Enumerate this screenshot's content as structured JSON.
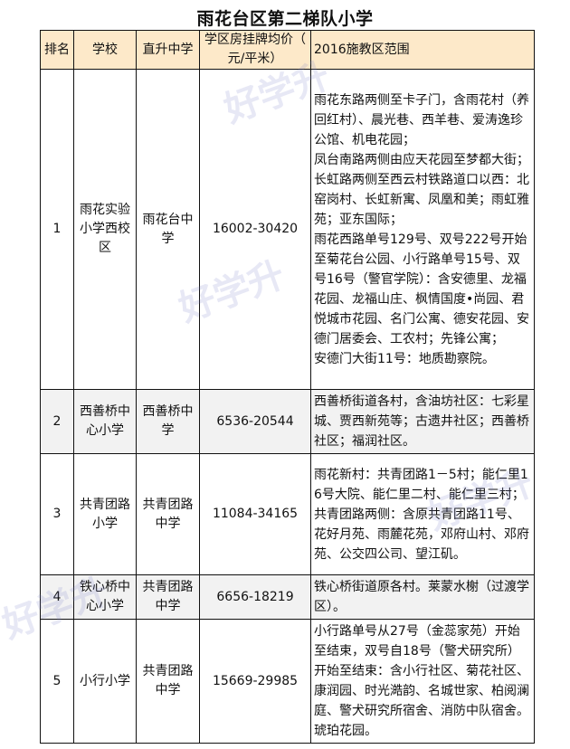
{
  "title": "雨花台区第二梯队小学",
  "headers": {
    "rank": "排名",
    "school": "学校",
    "middle": "直升中学",
    "price": "学区房挂牌均价（ 元/平米）",
    "range": "2016施教区范围"
  },
  "rows": [
    {
      "rank": "1",
      "school": "雨花实验小学西校区",
      "middle": "雨花台中学",
      "price": "16002-30420",
      "range": "雨花东路两侧至卡子门，含雨花村（养回红村）、晨光巷、西羊巷、爱涛逸珍公馆、机电花园；\n凤台南路两侧由应天花园至梦都大街；\n长虹路两侧至西云村铁路道口以西：北窑岗村、长虹新寓、凤凰和美；雨虹雅苑；亚东国际；\n雨花西路单号129号、双号222号开始至菊花台公园、小行路单号15号、双号16号（警官学院）：含安德里、龙福花园、龙福山庄、枫情国度•尚园、君悦城市花园、名门公寓、德安花园、安德门居委会、工农村；先锋公寓；\n安德门大街11号：地质勘察院。"
    },
    {
      "rank": "2",
      "school": "西善桥中心小学",
      "middle": "西善桥中学",
      "price": "6536-20544",
      "range": "西善桥街道各村，含油坊社区：七彩星城、贾西新苑等；古遗井社区；西善桥社区；福润社区。"
    },
    {
      "rank": "3",
      "school": "共青团路小学",
      "middle": "共青团路中学",
      "price": "11084-34165",
      "range": "雨花新村：共青团路1－5村；能仁里16号大院、能仁里二村、能仁里三村；共青团路两侧：含原共青团路11号、花好月苑、雨麓花苑，邓府山村、邓府苑、公交四公司、望江矶。"
    },
    {
      "rank": "4",
      "school": "铁心桥中心小学",
      "middle": "共青团路中学",
      "price": "6656-18219",
      "range": "铁心桥街道原各村。莱蒙水榭（过渡学区）。"
    },
    {
      "rank": "5",
      "school": "小行小学",
      "middle": "共青团路中学",
      "price": "15669-29985",
      "range": "小行路单号从27号（金蕊家苑）开始至结束，双号自18号（警犬研究所）开始至结束：含小行社区、菊花社区、康润园、时光澔韵、名城世家、柏阅澜庭、警犬研究所宿舍、消防中队宿舍。琥珀花园。"
    }
  ],
  "watermark": "好学升 www.hxsup.com",
  "colors": {
    "header_bg": "#fde9c9",
    "alt_row_bg": "#f2f2f2"
  }
}
